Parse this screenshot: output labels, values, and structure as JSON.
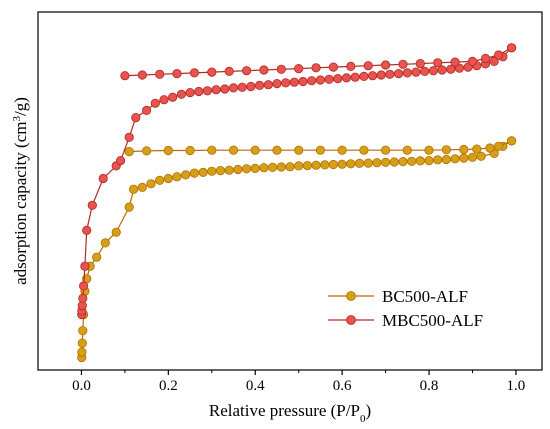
{
  "chart_data": {
    "type": "line",
    "xlabel": "Relative pressure (P/P",
    "xlabel_sub": "0",
    "xlabel_tail": ")",
    "ylabel": "adsorption capacity (cm",
    "ylabel_sup": "3",
    "ylabel_tail": "/g)",
    "xlim": [
      -0.1,
      1.06
    ],
    "ylim": [
      0,
      1.0
    ],
    "xticks": [
      0.0,
      0.2,
      0.4,
      0.6,
      0.8,
      1.0
    ],
    "xtick_labels": [
      "0.0",
      "0.2",
      "0.4",
      "0.6",
      "0.8",
      "1.0"
    ],
    "yticks_labeled": false,
    "grid": false,
    "legend_position": "bottom-right",
    "series": [
      {
        "name": "BC500-ALF",
        "color": "#d4a017",
        "edge": "#b86d00",
        "branches": [
          {
            "x": [
              0.0005,
              0.001,
              0.002,
              0.003,
              0.005,
              0.008,
              0.012,
              0.02,
              0.035,
              0.055,
              0.08,
              0.11,
              0.12,
              0.14,
              0.16,
              0.18,
              0.2,
              0.22,
              0.24,
              0.26,
              0.28,
              0.3,
              0.32,
              0.34,
              0.36,
              0.38,
              0.4,
              0.42,
              0.44,
              0.46,
              0.48,
              0.5,
              0.52,
              0.54,
              0.56,
              0.58,
              0.6,
              0.62,
              0.64,
              0.66,
              0.68,
              0.7,
              0.72,
              0.74,
              0.76,
              0.78,
              0.8,
              0.82,
              0.84,
              0.86,
              0.88,
              0.9,
              0.92,
              0.95,
              0.97,
              0.99
            ],
            "y": [
              0.035,
              0.05,
              0.075,
              0.11,
              0.155,
              0.22,
              0.255,
              0.29,
              0.315,
              0.355,
              0.385,
              0.455,
              0.505,
              0.51,
              0.52,
              0.53,
              0.535,
              0.54,
              0.545,
              0.55,
              0.552,
              0.555,
              0.557,
              0.558,
              0.56,
              0.562,
              0.563,
              0.565,
              0.566,
              0.567,
              0.568,
              0.57,
              0.571,
              0.572,
              0.573,
              0.574,
              0.575,
              0.576,
              0.577,
              0.578,
              0.579,
              0.58,
              0.581,
              0.582,
              0.583,
              0.584,
              0.585,
              0.587,
              0.588,
              0.59,
              0.592,
              0.594,
              0.597,
              0.605,
              0.625,
              0.64
            ]
          },
          {
            "x": [
              0.11,
              0.15,
              0.2,
              0.25,
              0.3,
              0.35,
              0.4,
              0.45,
              0.5,
              0.55,
              0.6,
              0.65,
              0.7,
              0.75,
              0.8,
              0.84,
              0.88,
              0.91,
              0.94,
              0.96,
              0.99
            ],
            "y": [
              0.61,
              0.612,
              0.613,
              0.613,
              0.614,
              0.614,
              0.614,
              0.614,
              0.614,
              0.614,
              0.614,
              0.614,
              0.614,
              0.614,
              0.614,
              0.615,
              0.616,
              0.617,
              0.62,
              0.625,
              0.64
            ]
          }
        ]
      },
      {
        "name": "MBC500-ALF",
        "color": "#e8534f",
        "edge": "#b02a24",
        "branches": [
          {
            "x": [
              0.0005,
              0.001,
              0.002,
              0.003,
              0.005,
              0.008,
              0.012,
              0.025,
              0.05,
              0.08,
              0.09,
              0.11,
              0.125,
              0.15,
              0.17,
              0.19,
              0.21,
              0.23,
              0.25,
              0.27,
              0.29,
              0.31,
              0.33,
              0.35,
              0.37,
              0.39,
              0.41,
              0.43,
              0.45,
              0.47,
              0.49,
              0.51,
              0.53,
              0.55,
              0.57,
              0.59,
              0.61,
              0.63,
              0.65,
              0.67,
              0.69,
              0.71,
              0.73,
              0.75,
              0.77,
              0.79,
              0.81,
              0.83,
              0.85,
              0.87,
              0.89,
              0.91,
              0.93,
              0.95,
              0.97,
              0.99
            ],
            "y": [
              0.155,
              0.165,
              0.18,
              0.2,
              0.235,
              0.29,
              0.39,
              0.46,
              0.535,
              0.57,
              0.585,
              0.65,
              0.705,
              0.725,
              0.745,
              0.755,
              0.762,
              0.77,
              0.775,
              0.778,
              0.78,
              0.783,
              0.785,
              0.788,
              0.79,
              0.792,
              0.795,
              0.797,
              0.8,
              0.802,
              0.804,
              0.806,
              0.808,
              0.81,
              0.812,
              0.814,
              0.816,
              0.818,
              0.82,
              0.822,
              0.824,
              0.826,
              0.828,
              0.83,
              0.832,
              0.834,
              0.836,
              0.838,
              0.84,
              0.843,
              0.846,
              0.85,
              0.855,
              0.862,
              0.875,
              0.9
            ]
          },
          {
            "x": [
              0.1,
              0.14,
              0.18,
              0.22,
              0.26,
              0.3,
              0.34,
              0.38,
              0.42,
              0.46,
              0.5,
              0.54,
              0.58,
              0.62,
              0.66,
              0.7,
              0.74,
              0.78,
              0.82,
              0.86,
              0.9,
              0.93,
              0.96,
              0.99
            ],
            "y": [
              0.822,
              0.824,
              0.826,
              0.828,
              0.83,
              0.832,
              0.834,
              0.836,
              0.838,
              0.84,
              0.842,
              0.844,
              0.846,
              0.848,
              0.85,
              0.852,
              0.854,
              0.856,
              0.858,
              0.86,
              0.862,
              0.87,
              0.88,
              0.9
            ]
          }
        ]
      }
    ]
  }
}
